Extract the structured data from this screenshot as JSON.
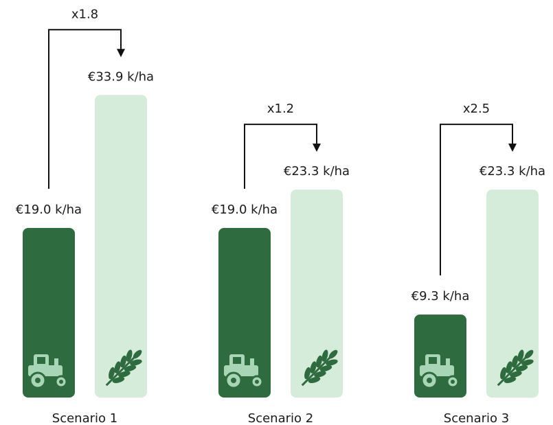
{
  "chart_data": {
    "type": "bar",
    "categories": [
      "Scenario 1",
      "Scenario 2",
      "Scenario 3"
    ],
    "series": [
      {
        "color": "#2e6b3e",
        "values": [
          19.0,
          19.0,
          9.3
        ],
        "value_labels": [
          "€19.0 k/ha",
          "€19.0 k/ha",
          "€9.3 k/ha"
        ]
      },
      {
        "color": "#d6ecdb",
        "values": [
          33.9,
          23.3,
          23.3
        ],
        "value_labels": [
          "€33.9 k/ha",
          "€23.3 k/ha",
          "€23.3 k/ha"
        ]
      }
    ],
    "annotations": [
      "x1.8",
      "x1.2",
      "x2.5"
    ]
  }
}
